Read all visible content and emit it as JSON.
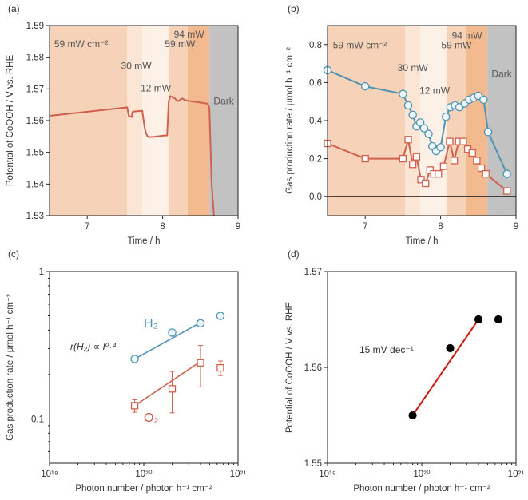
{
  "colors": {
    "red": "#d0604c",
    "blue": "#4e93b3",
    "fit_red": "#cc1a12",
    "marker_face": "#eef6fa",
    "marker_face_red": "#ffffff",
    "dark_region": "#c2c2c2",
    "text": "#333333"
  },
  "chart_data": [
    {
      "id": "a",
      "panel_label": "(a)",
      "type": "line",
      "xlabel": "Time / h",
      "ylabel": "Potential of CoOOH / V vs. RHE",
      "xlim": [
        6.5,
        9.0
      ],
      "ylim": [
        1.53,
        1.59
      ],
      "xticks": [
        7,
        8,
        9
      ],
      "xtick_labels": [
        "7",
        "8",
        "9"
      ],
      "yticks": [
        1.53,
        1.54,
        1.55,
        1.56,
        1.57,
        1.58,
        1.59
      ],
      "ytick_labels": [
        "1.53",
        "1.54",
        "1.55",
        "1.56",
        "1.57",
        "1.58",
        "1.59"
      ],
      "regions": [
        {
          "start": 6.5,
          "end": 7.53,
          "label": "59 mW cm⁻²",
          "color": "#f6d3b8",
          "label_x": 6.92,
          "label_y": 1.5832
        },
        {
          "start": 7.53,
          "end": 7.73,
          "label": "30 mW",
          "color": "#fbe5d4",
          "label_x": 7.65,
          "label_y": 1.5762
        },
        {
          "start": 7.73,
          "end": 8.08,
          "label": "12 mW",
          "color": "#fdf1e7",
          "label_x": 7.91,
          "label_y": 1.5692
        },
        {
          "start": 8.08,
          "end": 8.33,
          "label": "59 mW",
          "color": "#f6d3b8",
          "label_x": 8.23,
          "label_y": 1.5832
        },
        {
          "start": 8.33,
          "end": 8.62,
          "label": "94 mW",
          "color": "#f3b98f",
          "label_x": 8.35,
          "label_y": 1.5862
        },
        {
          "start": 8.62,
          "end": 9.0,
          "label": "Dark",
          "color": "#c2c2c2",
          "label_x": 8.81,
          "label_y": 1.5652
        }
      ],
      "series": [
        {
          "name": "Potential",
          "color": "#d0604c",
          "x": [
            6.5,
            7.5,
            7.53,
            7.55,
            7.59,
            7.6,
            7.63,
            7.68,
            7.73,
            7.76,
            7.78,
            7.8,
            7.83,
            7.88,
            7.95,
            8.02,
            8.06,
            8.08,
            8.1,
            8.15,
            8.2,
            8.23,
            8.26,
            8.3,
            8.35,
            8.45,
            8.58,
            8.6,
            8.62,
            8.65,
            8.68
          ],
          "y": [
            1.5615,
            1.5641,
            1.5642,
            1.5615,
            1.5611,
            1.5627,
            1.5629,
            1.563,
            1.5631,
            1.558,
            1.556,
            1.555,
            1.5548,
            1.5549,
            1.5551,
            1.5553,
            1.5553,
            1.566,
            1.5677,
            1.5672,
            1.5661,
            1.5665,
            1.567,
            1.5664,
            1.5662,
            1.5659,
            1.5654,
            1.5652,
            1.564,
            1.54,
            1.53
          ]
        }
      ]
    },
    {
      "id": "b",
      "panel_label": "(b)",
      "type": "line",
      "xlabel": "Time / h",
      "ylabel": "Gas production rate / μmol h⁻¹ cm⁻²",
      "xlim": [
        6.5,
        9.0
      ],
      "ylim": [
        -0.1,
        0.9
      ],
      "xticks": [
        7,
        8,
        9
      ],
      "xtick_labels": [
        "7",
        "8",
        "9"
      ],
      "yticks": [
        0.0,
        0.2,
        0.4,
        0.6,
        0.8
      ],
      "ytick_labels": [
        "0.0",
        "0.2",
        "0.4",
        "0.6",
        "0.8"
      ],
      "zero_line": 0.0,
      "regions": [
        {
          "start": 6.5,
          "end": 7.53,
          "label": "59 mW cm⁻²",
          "color": "#f6d3b8",
          "label_x": 6.93,
          "label_y": 0.78
        },
        {
          "start": 7.53,
          "end": 7.73,
          "label": "30 mW",
          "color": "#fbe5d4",
          "label_x": 7.63,
          "label_y": 0.66
        },
        {
          "start": 7.73,
          "end": 8.08,
          "label": "12 mW",
          "color": "#fdf1e7",
          "label_x": 7.92,
          "label_y": 0.54
        },
        {
          "start": 8.08,
          "end": 8.33,
          "label": "59 mW",
          "color": "#f6d3b8",
          "label_x": 8.21,
          "label_y": 0.78
        },
        {
          "start": 8.33,
          "end": 8.62,
          "label": "94 mW",
          "color": "#f3b98f",
          "label_x": 8.35,
          "label_y": 0.83
        },
        {
          "start": 8.62,
          "end": 9.0,
          "label": "Dark",
          "color": "#c2c2c2",
          "label_x": 8.81,
          "label_y": 0.63
        }
      ],
      "series": [
        {
          "name": "H2",
          "color": "#4e93b3",
          "marker": "circle",
          "x": [
            6.5,
            7.0,
            7.5,
            7.57,
            7.63,
            7.68,
            7.73,
            7.78,
            7.84,
            7.89,
            7.94,
            8.0,
            8.07,
            8.13,
            8.19,
            8.25,
            8.32,
            8.38,
            8.44,
            8.5,
            8.57,
            8.63,
            8.88
          ],
          "y": [
            0.665,
            0.58,
            0.54,
            0.48,
            0.43,
            0.37,
            0.39,
            0.36,
            0.33,
            0.265,
            0.24,
            0.26,
            0.42,
            0.47,
            0.48,
            0.47,
            0.49,
            0.51,
            0.52,
            0.53,
            0.51,
            0.34,
            0.12
          ]
        },
        {
          "name": "O2",
          "color": "#d0604c",
          "marker": "square",
          "x": [
            6.5,
            7.0,
            7.5,
            7.57,
            7.63,
            7.68,
            7.74,
            7.8,
            7.86,
            7.91,
            7.97,
            8.04,
            8.12,
            8.18,
            8.24,
            8.3,
            8.36,
            8.42,
            8.48,
            8.54,
            8.6,
            8.88
          ],
          "y": [
            0.28,
            0.2,
            0.2,
            0.3,
            0.17,
            0.21,
            0.09,
            0.07,
            0.14,
            0.12,
            0.12,
            0.16,
            0.29,
            0.19,
            0.29,
            0.29,
            0.25,
            0.23,
            0.19,
            0.15,
            0.12,
            0.03
          ]
        }
      ]
    },
    {
      "id": "c",
      "panel_label": "(c)",
      "type": "scatter",
      "xlabel": "Photon number / photon h⁻¹ cm⁻²",
      "ylabel": "Gas production rate / μmol h⁻¹ cm⁻²",
      "xscale": "log",
      "yscale": "log",
      "xlim": [
        1e+19,
        1e+21
      ],
      "ylim": [
        0.05,
        1.0
      ],
      "xticks": [
        1e+19,
        1e+20,
        1e+21
      ],
      "xtick_labels": [
        "10¹⁹",
        "10²⁰",
        "10²¹"
      ],
      "yticks": [
        0.1,
        1.0
      ],
      "ytick_labels": [
        "0.1",
        "1"
      ],
      "annotation": "r(H₂) ∝ I⁰·⁴",
      "series": [
        {
          "name": "H₂",
          "color": "#4e93b3",
          "marker": "circle",
          "x": [
            8e+19,
            2e+20,
            4e+20,
            6.5e+20
          ],
          "y": [
            0.255,
            0.385,
            0.445,
            0.5
          ],
          "yerr": [
            0.0,
            0.0,
            0.0,
            0.012
          ],
          "fit_x": [
            8e+19,
            4e+20
          ],
          "fit_y": [
            0.255,
            0.45
          ]
        },
        {
          "name": "O₂",
          "color": "#d0604c",
          "marker": "square",
          "x": [
            8e+19,
            2e+20,
            4e+20,
            6.5e+20
          ],
          "y": [
            0.123,
            0.16,
            0.24,
            0.222
          ],
          "yerr": [
            0.012,
            0.05,
            0.075,
            0.025
          ],
          "fit_x": [
            8e+19,
            4e+20
          ],
          "fit_y": [
            0.123,
            0.245
          ]
        }
      ]
    },
    {
      "id": "d",
      "panel_label": "(d)",
      "type": "scatter",
      "xlabel": "Photon number / photon h⁻¹ cm⁻²",
      "ylabel": "Potential of CoOOH / V vs. RHE",
      "xscale": "log",
      "xlim": [
        1e+19,
        1e+21
      ],
      "ylim": [
        1.55,
        1.57
      ],
      "xticks": [
        1e+19,
        1e+20,
        1e+21
      ],
      "xtick_labels": [
        "10¹⁹",
        "10²⁰",
        "10²¹"
      ],
      "yticks": [
        1.55,
        1.56,
        1.57
      ],
      "ytick_labels": [
        "1.55",
        "1.56",
        "1.57"
      ],
      "annotation": "15 mV dec⁻¹",
      "series": [
        {
          "name": "Potential",
          "color": "#000000",
          "marker": "filled-circle",
          "x": [
            8e+19,
            2e+20,
            4e+20,
            6.5e+20
          ],
          "y": [
            1.555,
            1.562,
            1.565,
            1.565
          ],
          "fit_x": [
            8e+19,
            4e+20
          ],
          "fit_y": [
            1.555,
            1.565
          ]
        }
      ]
    }
  ]
}
